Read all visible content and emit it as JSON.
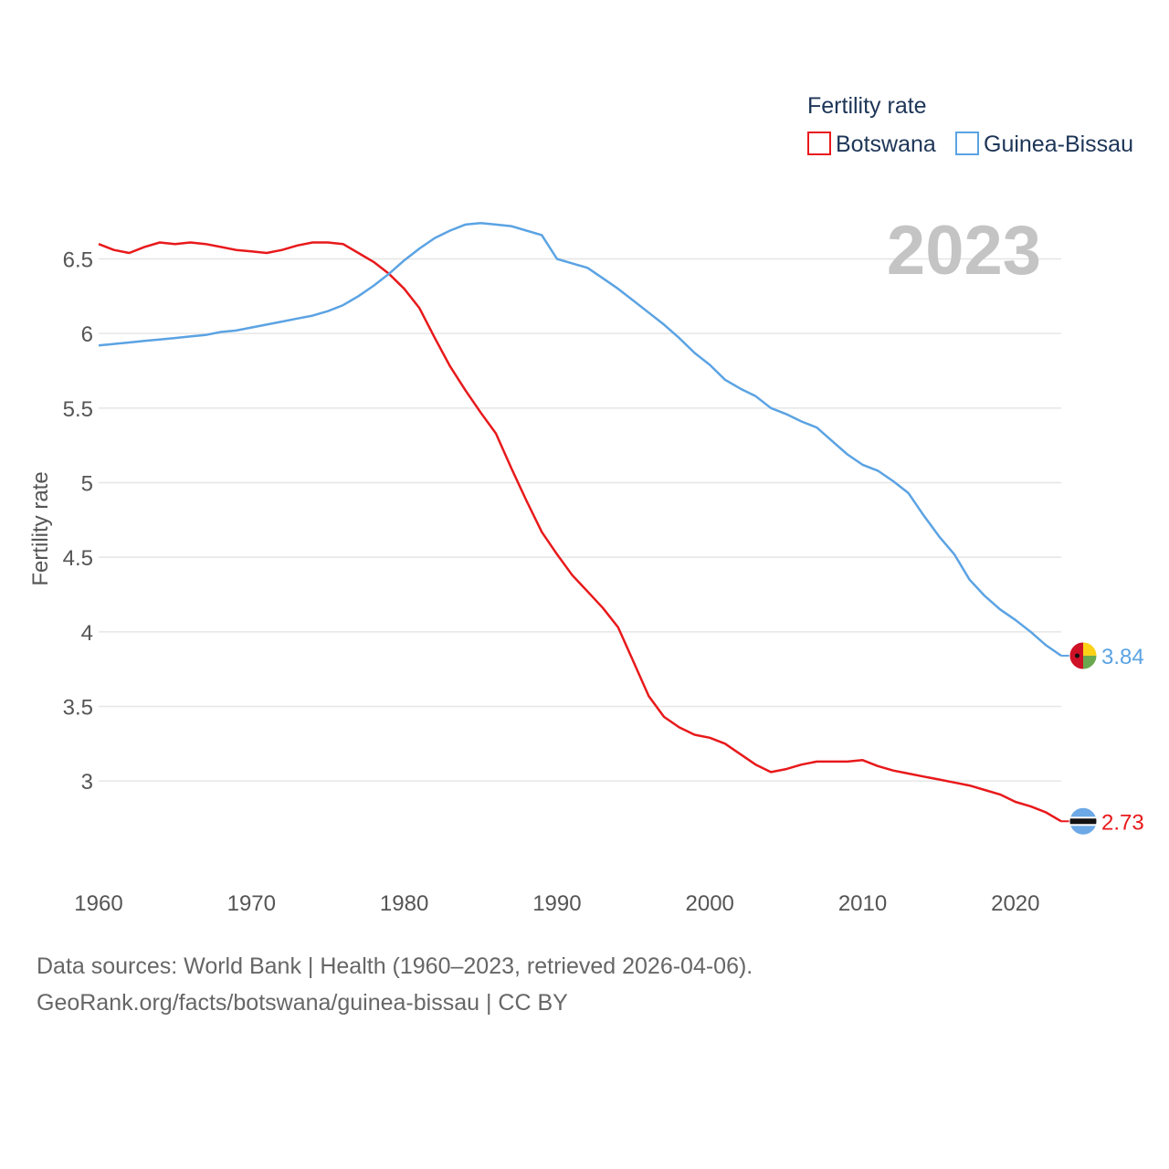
{
  "chart_data": {
    "type": "line",
    "title": "Fertility rate",
    "ylabel": "Fertility rate",
    "xlabel": "",
    "current_year_label": "2023",
    "xlim": [
      1960,
      2023
    ],
    "ylim": [
      2.45,
      6.95
    ],
    "x_ticks": [
      1960,
      1970,
      1980,
      1990,
      2000,
      2010,
      2020
    ],
    "y_ticks": [
      3,
      3.5,
      4,
      4.5,
      5,
      5.5,
      6,
      6.5
    ],
    "y_tick_labels": [
      "3",
      "3.5",
      "4",
      "4.5",
      "5",
      "5.5",
      "6",
      "6.5"
    ],
    "legend_position": "top-right",
    "x": [
      1960,
      1961,
      1962,
      1963,
      1964,
      1965,
      1966,
      1967,
      1968,
      1969,
      1970,
      1971,
      1972,
      1973,
      1974,
      1975,
      1976,
      1977,
      1978,
      1979,
      1980,
      1981,
      1982,
      1983,
      1984,
      1985,
      1986,
      1987,
      1988,
      1989,
      1990,
      1991,
      1992,
      1993,
      1994,
      1995,
      1996,
      1997,
      1998,
      1999,
      2000,
      2001,
      2002,
      2003,
      2004,
      2005,
      2006,
      2007,
      2008,
      2009,
      2010,
      2011,
      2012,
      2013,
      2014,
      2015,
      2016,
      2017,
      2018,
      2019,
      2020,
      2021,
      2022,
      2023
    ],
    "series": [
      {
        "name": "Botswana",
        "color": "#e8191b",
        "end_label": "2.73",
        "values": [
          6.6,
          6.56,
          6.54,
          6.58,
          6.61,
          6.6,
          6.61,
          6.6,
          6.58,
          6.56,
          6.55,
          6.54,
          6.56,
          6.59,
          6.61,
          6.61,
          6.6,
          6.54,
          6.48,
          6.4,
          6.3,
          6.17,
          5.97,
          5.78,
          5.62,
          5.47,
          5.33,
          5.1,
          4.88,
          4.67,
          4.52,
          4.38,
          4.27,
          4.16,
          4.03,
          3.8,
          3.57,
          3.43,
          3.36,
          3.31,
          3.29,
          3.25,
          3.18,
          3.11,
          3.06,
          3.08,
          3.11,
          3.13,
          3.13,
          3.13,
          3.14,
          3.1,
          3.07,
          3.05,
          3.03,
          3.01,
          2.99,
          2.97,
          2.94,
          2.91,
          2.86,
          2.83,
          2.79,
          2.73
        ]
      },
      {
        "name": "Guinea-Bissau",
        "color": "#5ba3e3",
        "end_label": "3.84",
        "values": [
          5.92,
          5.93,
          5.94,
          5.95,
          5.96,
          5.97,
          5.98,
          5.99,
          6.01,
          6.02,
          6.04,
          6.06,
          6.08,
          6.1,
          6.12,
          6.15,
          6.19,
          6.25,
          6.32,
          6.4,
          6.49,
          6.57,
          6.64,
          6.69,
          6.73,
          6.74,
          6.73,
          6.72,
          6.69,
          6.66,
          6.5,
          6.47,
          6.44,
          6.37,
          6.3,
          6.22,
          6.14,
          6.06,
          5.97,
          5.87,
          5.79,
          5.69,
          5.63,
          5.58,
          5.5,
          5.46,
          5.41,
          5.37,
          5.28,
          5.19,
          5.12,
          5.08,
          5.01,
          4.93,
          4.78,
          4.64,
          4.52,
          4.35,
          4.24,
          4.15,
          4.08,
          4.0,
          3.91,
          3.84
        ]
      }
    ]
  },
  "legend": {
    "title": "Fertility rate",
    "items": [
      "Botswana",
      "Guinea-Bissau"
    ]
  },
  "footer": {
    "source": "Data sources: World Bank | Health (1960–2023, retrieved 2026-04-06).",
    "link": "GeoRank.org/facts/botswana/guinea-bissau | CC BY"
  },
  "flags": {
    "Botswana": "botswana-flag-icon",
    "Guinea-Bissau": "guinea-bissau-flag-icon"
  }
}
